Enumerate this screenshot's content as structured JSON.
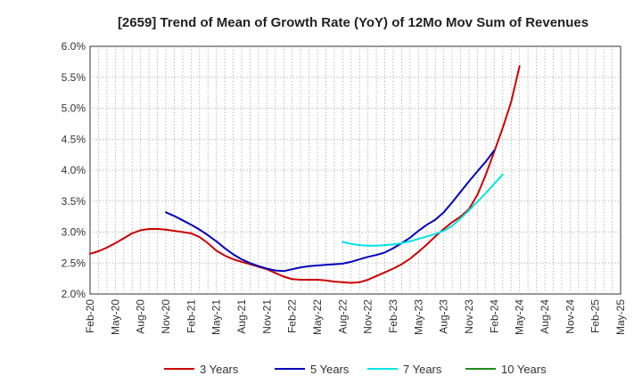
{
  "chart_data": {
    "type": "line",
    "title": "[2659]  Trend of Mean of Growth Rate (YoY) of 12Mo Mov Sum of Revenues",
    "xlabel": "",
    "ylabel": "",
    "ylim": [
      2.0,
      6.0
    ],
    "y_ticks": [
      2.0,
      2.5,
      3.0,
      3.5,
      4.0,
      4.5,
      5.0,
      5.5,
      6.0
    ],
    "y_tick_labels": [
      "2.0%",
      "2.5%",
      "3.0%",
      "3.5%",
      "4.0%",
      "4.5%",
      "5.0%",
      "5.5%",
      "6.0%"
    ],
    "x_tick_labels": [
      "Feb-20",
      "May-20",
      "Aug-20",
      "Nov-20",
      "Feb-21",
      "May-21",
      "Aug-21",
      "Nov-21",
      "Feb-22",
      "May-22",
      "Aug-22",
      "Nov-22",
      "Feb-23",
      "May-23",
      "Aug-23",
      "Nov-23",
      "Feb-24",
      "May-24",
      "Aug-24",
      "Nov-24",
      "Feb-25",
      "May-25"
    ],
    "grid": true,
    "legend_position": "bottom",
    "series": [
      {
        "name": "3 Years",
        "color": "#cc0000",
        "points": [
          [
            0,
            2.65
          ],
          [
            1,
            2.69
          ],
          [
            2,
            2.75
          ],
          [
            3,
            2.82
          ],
          [
            4,
            2.9
          ],
          [
            5,
            2.98
          ],
          [
            6,
            3.03
          ],
          [
            7,
            3.05
          ],
          [
            8,
            3.05
          ],
          [
            9,
            3.04
          ],
          [
            10,
            3.02
          ],
          [
            11,
            3.0
          ],
          [
            12,
            2.98
          ],
          [
            13,
            2.92
          ],
          [
            14,
            2.82
          ],
          [
            15,
            2.7
          ],
          [
            16,
            2.62
          ],
          [
            17,
            2.56
          ],
          [
            18,
            2.52
          ],
          [
            19,
            2.48
          ],
          [
            20,
            2.44
          ],
          [
            21,
            2.4
          ],
          [
            22,
            2.34
          ],
          [
            23,
            2.28
          ],
          [
            24,
            2.24
          ],
          [
            25,
            2.23
          ],
          [
            26,
            2.23
          ],
          [
            27,
            2.23
          ],
          [
            28,
            2.22
          ],
          [
            29,
            2.2
          ],
          [
            30,
            2.19
          ],
          [
            31,
            2.18
          ],
          [
            32,
            2.19
          ],
          [
            33,
            2.23
          ],
          [
            34,
            2.29
          ],
          [
            35,
            2.35
          ],
          [
            36,
            2.41
          ],
          [
            37,
            2.48
          ],
          [
            38,
            2.57
          ],
          [
            39,
            2.68
          ],
          [
            40,
            2.8
          ],
          [
            41,
            2.93
          ],
          [
            42,
            3.05
          ],
          [
            43,
            3.16
          ],
          [
            44,
            3.25
          ],
          [
            45,
            3.37
          ],
          [
            46,
            3.6
          ],
          [
            47,
            3.93
          ],
          [
            48,
            4.3
          ],
          [
            49,
            4.68
          ],
          [
            50,
            5.1
          ],
          [
            51,
            5.68
          ]
        ]
      },
      {
        "name": "5 Years",
        "color": "#0000bb",
        "points": [
          [
            9,
            3.32
          ],
          [
            10,
            3.26
          ],
          [
            11,
            3.19
          ],
          [
            12,
            3.12
          ],
          [
            13,
            3.04
          ],
          [
            14,
            2.95
          ],
          [
            15,
            2.85
          ],
          [
            16,
            2.74
          ],
          [
            17,
            2.64
          ],
          [
            18,
            2.56
          ],
          [
            19,
            2.5
          ],
          [
            20,
            2.45
          ],
          [
            21,
            2.41
          ],
          [
            22,
            2.38
          ],
          [
            23,
            2.37
          ],
          [
            24,
            2.4
          ],
          [
            25,
            2.43
          ],
          [
            26,
            2.45
          ],
          [
            27,
            2.46
          ],
          [
            28,
            2.47
          ],
          [
            29,
            2.48
          ],
          [
            30,
            2.49
          ],
          [
            31,
            2.52
          ],
          [
            32,
            2.56
          ],
          [
            33,
            2.6
          ],
          [
            34,
            2.63
          ],
          [
            35,
            2.67
          ],
          [
            36,
            2.74
          ],
          [
            37,
            2.82
          ],
          [
            38,
            2.91
          ],
          [
            39,
            3.02
          ],
          [
            40,
            3.12
          ],
          [
            41,
            3.2
          ],
          [
            42,
            3.32
          ],
          [
            43,
            3.48
          ],
          [
            44,
            3.65
          ],
          [
            45,
            3.82
          ],
          [
            46,
            3.98
          ],
          [
            47,
            4.14
          ],
          [
            48,
            4.32
          ]
        ]
      },
      {
        "name": "7 Years",
        "color": "#00e5e5",
        "points": [
          [
            30,
            2.84
          ],
          [
            31,
            2.81
          ],
          [
            32,
            2.79
          ],
          [
            33,
            2.78
          ],
          [
            34,
            2.78
          ],
          [
            35,
            2.79
          ],
          [
            36,
            2.8
          ],
          [
            37,
            2.82
          ],
          [
            38,
            2.85
          ],
          [
            39,
            2.89
          ],
          [
            40,
            2.93
          ],
          [
            41,
            2.97
          ],
          [
            42,
            3.02
          ],
          [
            43,
            3.1
          ],
          [
            44,
            3.22
          ],
          [
            45,
            3.35
          ],
          [
            46,
            3.49
          ],
          [
            47,
            3.63
          ],
          [
            48,
            3.78
          ],
          [
            49,
            3.93
          ]
        ]
      },
      {
        "name": "10 Years",
        "color": "#228b22",
        "points": []
      }
    ]
  }
}
